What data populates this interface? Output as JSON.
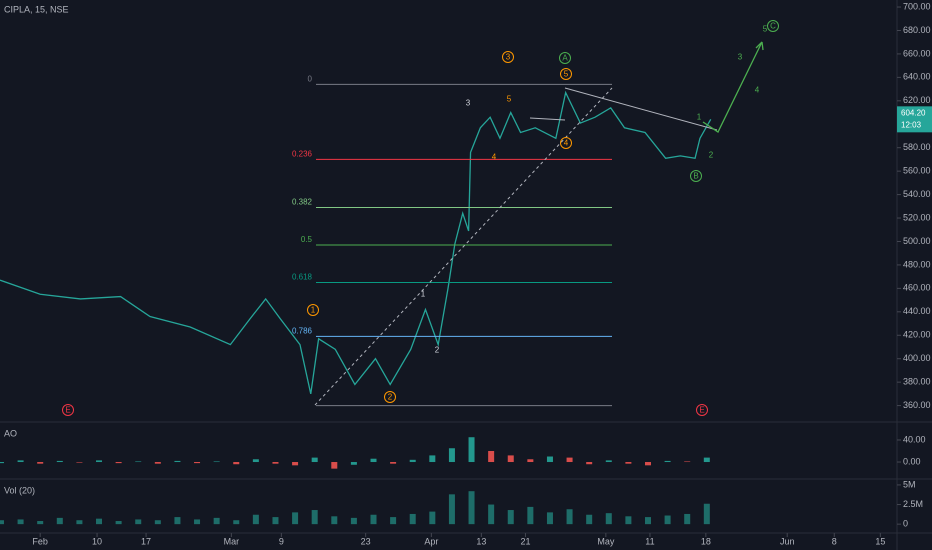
{
  "header": {
    "title": "CIPLA, 15, NSE"
  },
  "chart_data": [
    {
      "type": "line",
      "x": [
        -4.1,
        0,
        4.1,
        8.2,
        11.2,
        15.3,
        19.4,
        21.4,
        23,
        24.5,
        26.5,
        27.6,
        28.4,
        30.1,
        32.1,
        34.2,
        35.7,
        37.8,
        39.3,
        40.6,
        41.6,
        42.3,
        43.1,
        43.7,
        43.9,
        44.9,
        45.9,
        46.9,
        48,
        49,
        50.5,
        52.6,
        53.6,
        55.1,
        56.6,
        58.2,
        59.6,
        61.7,
        63.8,
        65.3,
        66.8,
        67.3,
        68.4
      ],
      "series": [
        {
          "name": "CIPLA",
          "color": "#26a69a",
          "values": [
            467,
            455,
            451,
            453,
            436,
            427,
            412,
            434,
            451,
            434,
            412,
            370,
            417,
            408,
            378,
            400,
            378,
            408,
            442,
            412,
            460,
            498,
            524,
            509,
            576,
            597,
            606,
            588,
            610,
            593,
            597,
            588,
            627,
            601,
            606,
            614,
            597,
            593,
            571,
            573,
            571,
            588,
            604.2
          ]
        }
      ],
      "xlim": [
        -4.1,
        87.4
      ],
      "ylim": [
        346,
        706
      ],
      "xticks": [
        {
          "value": 0,
          "label": "Feb"
        },
        {
          "value": 5.8,
          "label": "10"
        },
        {
          "value": 10.8,
          "label": "17"
        },
        {
          "value": 19.5,
          "label": "Mar"
        },
        {
          "value": 24.6,
          "label": "9"
        },
        {
          "value": 33.2,
          "label": "23"
        },
        {
          "value": 39.9,
          "label": "Apr"
        },
        {
          "value": 45,
          "label": "13"
        },
        {
          "value": 49.5,
          "label": "21"
        },
        {
          "value": 57.7,
          "label": "May"
        },
        {
          "value": 62.2,
          "label": "11"
        },
        {
          "value": 67.9,
          "label": "18"
        },
        {
          "value": 76.2,
          "label": "Jun"
        },
        {
          "value": 81,
          "label": "8"
        },
        {
          "value": 85.7,
          "label": "15"
        }
      ],
      "yticks": [
        {
          "value": 360,
          "label": "360.00"
        },
        {
          "value": 380,
          "label": "380.00"
        },
        {
          "value": 400,
          "label": "400.00"
        },
        {
          "value": 420,
          "label": "420.00"
        },
        {
          "value": 440,
          "label": "440.00"
        },
        {
          "value": 460,
          "label": "460.00"
        },
        {
          "value": 480,
          "label": "480.00"
        },
        {
          "value": 500,
          "label": "500.00"
        },
        {
          "value": 520,
          "label": "520.00"
        },
        {
          "value": 540,
          "label": "540.00"
        },
        {
          "value": 560,
          "label": "560.00"
        },
        {
          "value": 580,
          "label": "580.00"
        },
        {
          "value": 620,
          "label": "620.00"
        },
        {
          "value": 640,
          "label": "640.00"
        },
        {
          "value": 660,
          "label": "660.00"
        },
        {
          "value": 680,
          "label": "680.00"
        },
        {
          "value": 700,
          "label": "700.00"
        }
      ],
      "last_price": {
        "value": 604.2,
        "label": "604.20",
        "time": "12:03",
        "color": "#26a69a"
      },
      "fib_levels": [
        {
          "label": "0",
          "value": 634,
          "color": "#787b86"
        },
        {
          "label": "0.236",
          "value": 570,
          "color": "#f23645"
        },
        {
          "label": "0.382",
          "value": 529,
          "color": "#81c784"
        },
        {
          "label": "0.5",
          "value": 497,
          "color": "#4caf50"
        },
        {
          "label": "0.618",
          "value": 465,
          "color": "#089981"
        },
        {
          "label": "0.786",
          "value": 419,
          "color": "#64b5f6"
        },
        {
          "value": 360,
          "color": "#787b86"
        }
      ],
      "annotations": [
        {
          "text": "1",
          "color": "#ff9800"
        },
        {
          "text": "2",
          "color": "#ff9800"
        },
        {
          "text": "3",
          "color": "#ff9800"
        },
        {
          "text": "4",
          "color": "#ff9800"
        },
        {
          "text": "5",
          "color": "#ff9800"
        },
        {
          "text": "A",
          "color": "#4caf50"
        },
        {
          "text": "B",
          "color": "#4caf50"
        },
        {
          "text": "C",
          "color": "#4caf50"
        },
        {
          "text": "E",
          "color": "#f23645"
        },
        {
          "text": "E",
          "color": "#f23645"
        },
        {
          "text": "3",
          "color": "#d1d4dc"
        },
        {
          "text": "5",
          "color": "#ff9800"
        },
        {
          "text": "4",
          "color": "#ff9800"
        },
        {
          "text": "1",
          "color": "#d1d4dc"
        },
        {
          "text": "2",
          "color": "#d1d4dc"
        },
        {
          "text": "1",
          "color": "#4caf50"
        },
        {
          "text": "2",
          "color": "#4caf50"
        },
        {
          "text": "3",
          "color": "#4caf50"
        },
        {
          "text": "4",
          "color": "#4caf50"
        },
        {
          "text": "5",
          "color": "#4caf50"
        }
      ]
    },
    {
      "type": "bar",
      "title": "AO",
      "x": [
        -4,
        -2,
        0,
        2,
        4,
        6,
        8,
        10,
        12,
        14,
        16,
        18,
        20,
        22,
        24,
        26,
        28,
        30,
        32,
        34,
        36,
        38,
        40,
        42,
        44,
        46,
        48,
        50,
        52,
        54,
        56,
        58,
        60,
        62,
        64,
        66,
        68
      ],
      "values": [
        -2,
        3,
        -3,
        2,
        -1,
        3,
        -2,
        1,
        -3,
        2,
        -2,
        1,
        -4,
        5,
        -3,
        -6,
        8,
        -12,
        -5,
        6,
        -3,
        4,
        12,
        25,
        45,
        20,
        12,
        5,
        10,
        8,
        -4,
        3,
        -3,
        -6,
        2,
        1,
        8
      ],
      "up_color": "#26a69a",
      "down_color": "#ef5350",
      "ylim": [
        -29,
        69
      ],
      "yticks": [
        {
          "value": 0,
          "label": "0.00"
        },
        {
          "value": 40,
          "label": "40.00"
        }
      ]
    },
    {
      "type": "bar",
      "title": "Vol (20)",
      "x": [
        -4,
        -2,
        0,
        2,
        4,
        6,
        8,
        10,
        12,
        14,
        16,
        18,
        20,
        22,
        24,
        26,
        28,
        30,
        32,
        34,
        36,
        38,
        40,
        42,
        44,
        46,
        48,
        50,
        52,
        54,
        56,
        58,
        60,
        62,
        64,
        66,
        68
      ],
      "values": [
        500000,
        600000,
        400000,
        800000,
        500000,
        700000,
        400000,
        600000,
        500000,
        900000,
        600000,
        800000,
        500000,
        1200000,
        900000,
        1500000,
        1800000,
        1000000,
        800000,
        1200000,
        900000,
        1300000,
        1600000,
        3800000,
        4200000,
        2500000,
        1800000,
        2200000,
        1500000,
        1900000,
        1200000,
        1400000,
        1000000,
        900000,
        1100000,
        1300000,
        2600000
      ],
      "color": "#26a69a",
      "ylim": [
        -1000000,
        5500000
      ],
      "yticks": [
        0,
        {
          "value": 2500000,
          "label": "2.5M"
        },
        {
          "value": 5000000,
          "label": "5M"
        }
      ]
    }
  ]
}
